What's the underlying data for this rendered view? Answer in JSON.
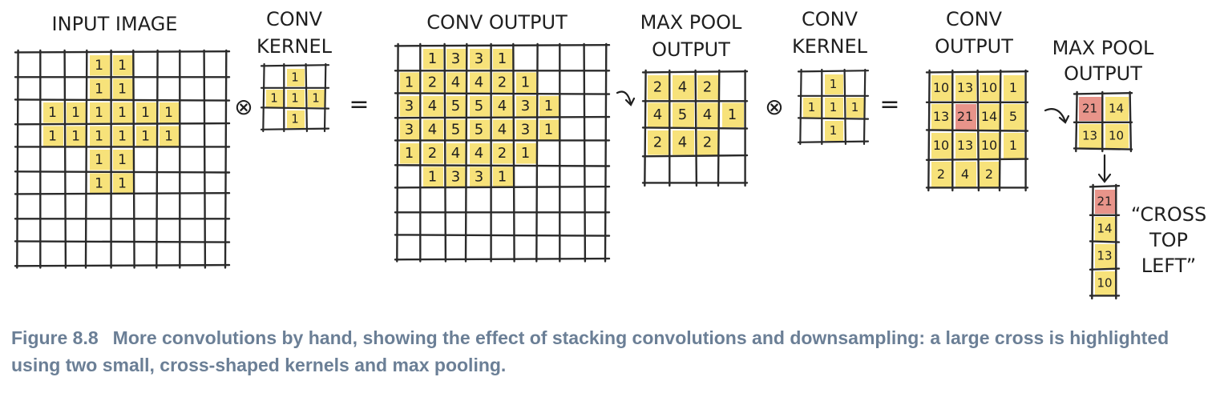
{
  "labels": {
    "input_image": "INPUT IMAGE",
    "kernel1_line1": "CONV",
    "kernel1_line2": "KERNEL",
    "conv1_output": "CONV OUTPUT",
    "pool1_line1": "MAX POOL",
    "pool1_line2": "OUTPUT",
    "kernel2_line1": "CONV",
    "kernel2_line2": "KERNEL",
    "conv2_line1": "CONV",
    "conv2_line2": "OUTPUT",
    "pool2_line1": "MAX POOL",
    "pool2_line2": "OUTPUT",
    "result_line1": "“CROSS",
    "result_line2": "TOP",
    "result_line3": "LEFT”"
  },
  "symbols": {
    "convolve": "⊗",
    "equals": "="
  },
  "colors": {
    "highlight": "#f7e27a",
    "max": "#e8948a",
    "grid": "#2a2a2a",
    "caption": "#6b7f96"
  },
  "grids": {
    "input": [
      [
        "",
        "",
        "",
        "1",
        "1",
        "",
        "",
        "",
        ""
      ],
      [
        "",
        "",
        "",
        "1",
        "1",
        "",
        "",
        "",
        ""
      ],
      [
        "",
        "1",
        "1",
        "1",
        "1",
        "1",
        "1",
        "",
        ""
      ],
      [
        "",
        "1",
        "1",
        "1",
        "1",
        "1",
        "1",
        "",
        ""
      ],
      [
        "",
        "",
        "",
        "1",
        "1",
        "",
        "",
        "",
        ""
      ],
      [
        "",
        "",
        "",
        "1",
        "1",
        "",
        "",
        "",
        ""
      ],
      [
        "",
        "",
        "",
        "",
        "",
        "",
        "",
        "",
        ""
      ],
      [
        "",
        "",
        "",
        "",
        "",
        "",
        "",
        "",
        ""
      ],
      [
        "",
        "",
        "",
        "",
        "",
        "",
        "",
        "",
        ""
      ]
    ],
    "kernel1": [
      [
        "",
        "1",
        ""
      ],
      [
        "1",
        "1",
        "1"
      ],
      [
        "",
        "1",
        ""
      ]
    ],
    "conv1": [
      [
        "",
        "1",
        "3",
        "3",
        "1",
        "",
        "",
        "",
        ""
      ],
      [
        "1",
        "2",
        "4",
        "4",
        "2",
        "1",
        "",
        "",
        ""
      ],
      [
        "3",
        "4",
        "5",
        "5",
        "4",
        "3",
        "1",
        "",
        ""
      ],
      [
        "3",
        "4",
        "5",
        "5",
        "4",
        "3",
        "1",
        "",
        ""
      ],
      [
        "1",
        "2",
        "4",
        "4",
        "2",
        "1",
        "",
        "",
        ""
      ],
      [
        "",
        "1",
        "3",
        "3",
        "1",
        "",
        "",
        "",
        ""
      ],
      [
        "",
        "",
        "",
        "",
        "",
        "",
        "",
        "",
        ""
      ],
      [
        "",
        "",
        "",
        "",
        "",
        "",
        "",
        "",
        ""
      ],
      [
        "",
        "",
        "",
        "",
        "",
        "",
        "",
        "",
        ""
      ]
    ],
    "pool1": [
      [
        "2",
        "4",
        "2",
        ""
      ],
      [
        "4",
        "5",
        "4",
        "1"
      ],
      [
        "2",
        "4",
        "2",
        ""
      ],
      [
        "",
        "",
        "",
        ""
      ]
    ],
    "kernel2": [
      [
        "",
        "1",
        ""
      ],
      [
        "1",
        "1",
        "1"
      ],
      [
        "",
        "1",
        ""
      ]
    ],
    "conv2": [
      [
        "10",
        "13",
        "10",
        "1"
      ],
      [
        "13",
        "21",
        "14",
        "5"
      ],
      [
        "10",
        "13",
        "10",
        "1"
      ],
      [
        "2",
        "4",
        "2",
        ""
      ]
    ],
    "pool2": [
      [
        "21",
        "14"
      ],
      [
        "13",
        "10"
      ]
    ],
    "flat": [
      [
        "21"
      ],
      [
        "14"
      ],
      [
        "13"
      ],
      [
        "10"
      ]
    ]
  },
  "max_cells": {
    "conv2": [
      [
        1,
        1
      ]
    ],
    "pool2": [
      [
        0,
        0
      ]
    ],
    "flat": [
      [
        0,
        0
      ]
    ]
  },
  "caption": {
    "number": "Figure 8.8",
    "text": "More convolutions by hand, showing the effect of stacking convolutions and downsampling: a large cross is highlighted using two small, cross-shaped kernels and max pooling."
  }
}
